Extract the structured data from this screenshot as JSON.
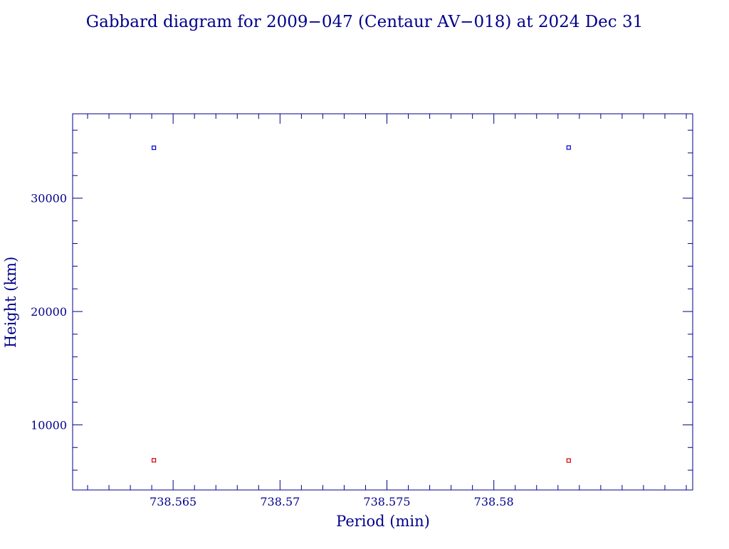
{
  "chart_data": {
    "type": "scatter",
    "title": "Gabbard diagram for 2009−047 (Centaur AV−018) at 2024 Dec 31",
    "xlabel": "Period (min)",
    "ylabel": "Height (km)",
    "xlim": [
      738.5603,
      738.5893
    ],
    "ylim": [
      4250,
      37450
    ],
    "x_ticks": [
      {
        "value": 738.565,
        "label": "738.565"
      },
      {
        "value": 738.57,
        "label": "738.57"
      },
      {
        "value": 738.575,
        "label": "738.575"
      },
      {
        "value": 738.58,
        "label": "738.58"
      }
    ],
    "y_ticks": [
      {
        "value": 10000,
        "label": "10000"
      },
      {
        "value": 20000,
        "label": "20000"
      },
      {
        "value": 30000,
        "label": "30000"
      }
    ],
    "x_minor_step": 0.001,
    "y_minor_step": 2000,
    "grid": false,
    "series": [
      {
        "color": "#0000cc",
        "points": [
          {
            "x": 738.5641,
            "y": 34450
          },
          {
            "x": 738.5835,
            "y": 34470
          }
        ]
      },
      {
        "color": "#cc0000",
        "points": [
          {
            "x": 738.5641,
            "y": 6870
          },
          {
            "x": 738.5835,
            "y": 6850
          }
        ]
      }
    ],
    "colors": {
      "axes": "#00008b",
      "text": "#00008b"
    }
  }
}
